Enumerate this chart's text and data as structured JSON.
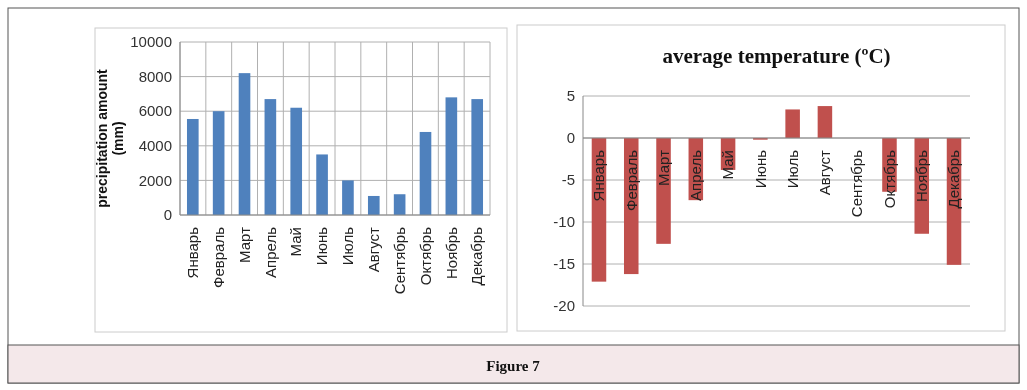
{
  "chart_data": [
    {
      "type": "bar",
      "ylabel": "precipitation amount (mm)",
      "categories": [
        "Январь",
        "Февраль",
        "Март",
        "Апрель",
        "Май",
        "Июнь",
        "Июль",
        "Август",
        "Сентябрь",
        "Октябрь",
        "Ноябрь",
        "Декабрь"
      ],
      "values": [
        5550,
        6000,
        8200,
        6700,
        6200,
        3500,
        2000,
        1100,
        1200,
        4800,
        6800,
        6700
      ],
      "color": "#4f81bd",
      "ylim": [
        0,
        10000
      ],
      "yticks": [
        0,
        2000,
        4000,
        6000,
        8000,
        10000
      ],
      "grid": true,
      "annotations": [
        "Figure 7"
      ]
    },
    {
      "type": "bar",
      "title": "average temperature (ºC)",
      "categories": [
        "Январь",
        "Февраль",
        "Март",
        "Апрель",
        "Май",
        "Июнь",
        "Июль",
        "Август",
        "Сентябрь",
        "Октябрь",
        "Ноябрь",
        "Декабрь"
      ],
      "values": [
        -17.1,
        -16.2,
        -12.6,
        -7.4,
        -3.8,
        -0.2,
        3.4,
        3.8,
        0,
        -6.4,
        -11.4,
        -15.1
      ],
      "color": "#c0504d",
      "ylim": [
        -20,
        5
      ],
      "yticks": [
        -20,
        -15,
        -10,
        -5,
        0,
        5
      ],
      "grid": "y"
    }
  ]
}
